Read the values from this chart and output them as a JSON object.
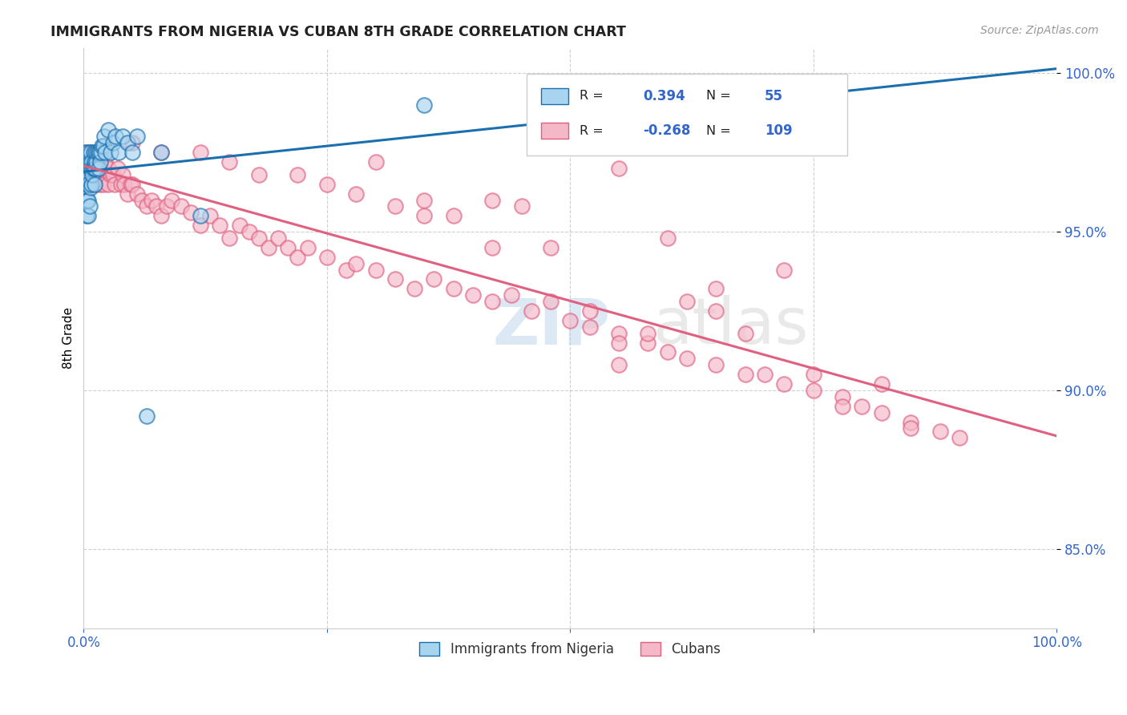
{
  "title": "IMMIGRANTS FROM NIGERIA VS CUBAN 8TH GRADE CORRELATION CHART",
  "source_text": "Source: ZipAtlas.com",
  "ylabel": "8th Grade",
  "xmin": 0.0,
  "xmax": 1.0,
  "ymin": 0.825,
  "ymax": 1.008,
  "yticks": [
    0.85,
    0.9,
    0.95,
    1.0
  ],
  "ytick_labels": [
    "85.0%",
    "90.0%",
    "95.0%",
    "100.0%"
  ],
  "legend_R1": "0.394",
  "legend_N1": "55",
  "legend_R2": "-0.268",
  "legend_N2": "109",
  "color_nigeria": "#a8d4f0",
  "color_cuba": "#f4b8c8",
  "color_line_nigeria": "#1a6faf",
  "color_line_cuba": "#e06080",
  "nigeria_x": [
    0.001,
    0.001,
    0.002,
    0.002,
    0.003,
    0.003,
    0.003,
    0.004,
    0.004,
    0.004,
    0.005,
    0.005,
    0.005,
    0.005,
    0.006,
    0.006,
    0.006,
    0.007,
    0.007,
    0.007,
    0.008,
    0.008,
    0.009,
    0.009,
    0.01,
    0.01,
    0.01,
    0.011,
    0.011,
    0.012,
    0.012,
    0.013,
    0.014,
    0.015,
    0.015,
    0.016,
    0.017,
    0.018,
    0.019,
    0.02,
    0.021,
    0.022,
    0.025,
    0.028,
    0.03,
    0.033,
    0.036,
    0.04,
    0.045,
    0.05,
    0.055,
    0.065,
    0.08,
    0.12,
    0.35
  ],
  "nigeria_y": [
    0.975,
    0.97,
    0.965,
    0.972,
    0.96,
    0.955,
    0.97,
    0.96,
    0.965,
    0.968,
    0.955,
    0.965,
    0.96,
    0.975,
    0.958,
    0.97,
    0.972,
    0.97,
    0.964,
    0.975,
    0.965,
    0.972,
    0.97,
    0.968,
    0.97,
    0.975,
    0.97,
    0.965,
    0.972,
    0.97,
    0.975,
    0.972,
    0.975,
    0.97,
    0.975,
    0.975,
    0.972,
    0.975,
    0.977,
    0.977,
    0.98,
    0.975,
    0.982,
    0.975,
    0.978,
    0.98,
    0.975,
    0.98,
    0.978,
    0.975,
    0.98,
    0.892,
    0.975,
    0.955,
    0.99
  ],
  "cuba_x": [
    0.003,
    0.005,
    0.007,
    0.008,
    0.01,
    0.01,
    0.012,
    0.014,
    0.015,
    0.016,
    0.018,
    0.02,
    0.022,
    0.025,
    0.025,
    0.028,
    0.03,
    0.032,
    0.035,
    0.038,
    0.04,
    0.042,
    0.045,
    0.048,
    0.05,
    0.055,
    0.06,
    0.065,
    0.07,
    0.075,
    0.08,
    0.085,
    0.09,
    0.1,
    0.11,
    0.12,
    0.13,
    0.14,
    0.15,
    0.16,
    0.17,
    0.18,
    0.19,
    0.2,
    0.21,
    0.22,
    0.23,
    0.25,
    0.27,
    0.28,
    0.3,
    0.32,
    0.34,
    0.36,
    0.38,
    0.4,
    0.42,
    0.44,
    0.46,
    0.48,
    0.5,
    0.52,
    0.55,
    0.58,
    0.6,
    0.62,
    0.65,
    0.68,
    0.7,
    0.72,
    0.75,
    0.78,
    0.8,
    0.82,
    0.85,
    0.88,
    0.9,
    0.55,
    0.42,
    0.3,
    0.18,
    0.08,
    0.35,
    0.6,
    0.72,
    0.25,
    0.45,
    0.65,
    0.15,
    0.55,
    0.75,
    0.05,
    0.28,
    0.48,
    0.38,
    0.62,
    0.82,
    0.22,
    0.52,
    0.68,
    0.12,
    0.32,
    0.58,
    0.78,
    0.42,
    0.65,
    0.85,
    0.35,
    0.55
  ],
  "cuba_y": [
    0.975,
    0.97,
    0.975,
    0.972,
    0.97,
    0.965,
    0.968,
    0.972,
    0.97,
    0.965,
    0.97,
    0.965,
    0.972,
    0.97,
    0.965,
    0.968,
    0.968,
    0.965,
    0.97,
    0.965,
    0.968,
    0.965,
    0.962,
    0.965,
    0.965,
    0.962,
    0.96,
    0.958,
    0.96,
    0.958,
    0.955,
    0.958,
    0.96,
    0.958,
    0.956,
    0.952,
    0.955,
    0.952,
    0.948,
    0.952,
    0.95,
    0.948,
    0.945,
    0.948,
    0.945,
    0.942,
    0.945,
    0.942,
    0.938,
    0.94,
    0.938,
    0.935,
    0.932,
    0.935,
    0.932,
    0.93,
    0.928,
    0.93,
    0.925,
    0.928,
    0.922,
    0.92,
    0.918,
    0.915,
    0.912,
    0.91,
    0.908,
    0.905,
    0.905,
    0.902,
    0.9,
    0.898,
    0.895,
    0.893,
    0.89,
    0.887,
    0.885,
    0.97,
    0.96,
    0.972,
    0.968,
    0.975,
    0.955,
    0.948,
    0.938,
    0.965,
    0.958,
    0.932,
    0.972,
    0.915,
    0.905,
    0.978,
    0.962,
    0.945,
    0.955,
    0.928,
    0.902,
    0.968,
    0.925,
    0.918,
    0.975,
    0.958,
    0.918,
    0.895,
    0.945,
    0.925,
    0.888,
    0.96,
    0.908
  ]
}
